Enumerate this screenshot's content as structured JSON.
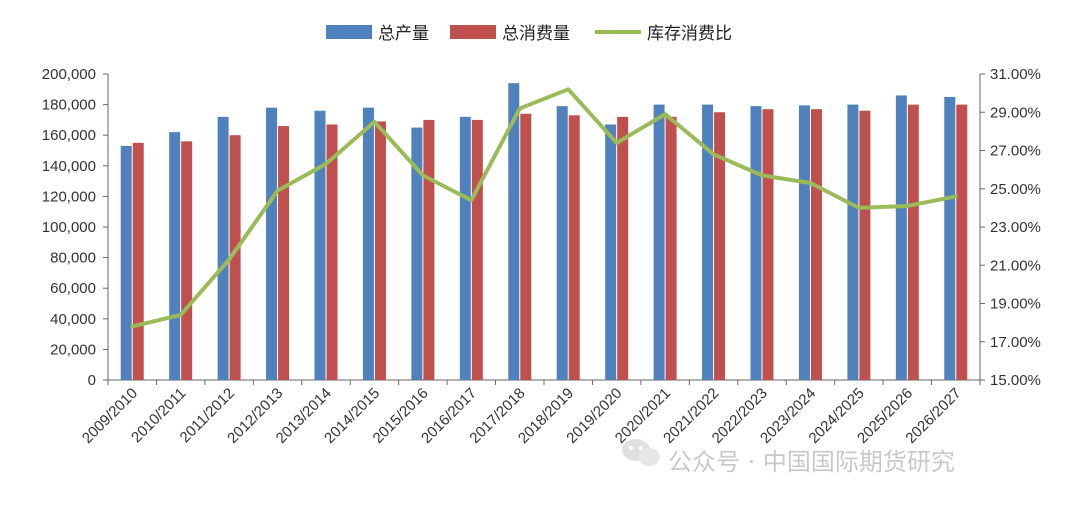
{
  "chart_data": {
    "type": "bar",
    "categories": [
      "2009/2010",
      "2010/2011",
      "2011/2012",
      "2012/2013",
      "2013/2014",
      "2014/2015",
      "2015/2016",
      "2016/2017",
      "2017/2018",
      "2018/2019",
      "2019/2020",
      "2020/2021",
      "2021/2022",
      "2022/2023",
      "2023/2024",
      "2024/2025",
      "2025/2026",
      "2026/2027"
    ],
    "series": [
      {
        "name": "总产量",
        "kind": "bar",
        "axis": "left",
        "color": "#4f81bd",
        "values": [
          153000,
          162000,
          172000,
          178000,
          176000,
          178000,
          165000,
          172000,
          194000,
          179000,
          167000,
          180000,
          180000,
          179000,
          179500,
          180000,
          186000,
          185000
        ]
      },
      {
        "name": "总消费量",
        "kind": "bar",
        "axis": "left",
        "color": "#c0504d",
        "values": [
          155000,
          156000,
          160000,
          166000,
          167000,
          169000,
          170000,
          170000,
          174000,
          173000,
          172000,
          172000,
          175000,
          177000,
          177000,
          176000,
          180000,
          180000
        ]
      },
      {
        "name": "库存消费比",
        "kind": "line",
        "axis": "right",
        "color": "#9bbb59",
        "values": [
          17.8,
          18.4,
          21.3,
          24.9,
          26.3,
          28.5,
          25.7,
          24.4,
          29.2,
          30.2,
          27.4,
          28.9,
          26.8,
          25.7,
          25.3,
          24.0,
          24.1,
          24.6
        ]
      }
    ],
    "left_axis": {
      "ylim": [
        0,
        200000
      ],
      "ticks": [
        0,
        20000,
        40000,
        60000,
        80000,
        100000,
        120000,
        140000,
        160000,
        180000,
        200000
      ],
      "tick_labels": [
        "0",
        "20,000",
        "40,000",
        "60,000",
        "80,000",
        "100,000",
        "120,000",
        "140,000",
        "160,000",
        "180,000",
        "200,000"
      ]
    },
    "right_axis": {
      "ylim": [
        15,
        31
      ],
      "ticks": [
        15,
        17,
        19,
        21,
        23,
        25,
        27,
        29,
        31
      ],
      "tick_labels": [
        "15.00%",
        "17.00%",
        "19.00%",
        "21.00%",
        "23.00%",
        "25.00%",
        "27.00%",
        "29.00%",
        "31.00%"
      ]
    },
    "legend_position": "top-center",
    "grid": false
  },
  "watermark": {
    "text": "公众号 · 中国国际期货研究",
    "icon": "wechat-icon"
  }
}
